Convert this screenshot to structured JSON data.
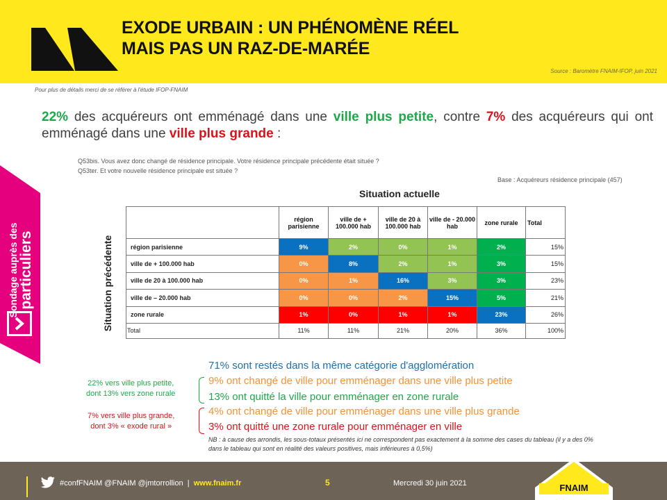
{
  "header": {
    "title_line1": "EXODE URBAIN : UN PHÉNOMÈNE RÉEL",
    "title_line2": "MAIS PAS UN RAZ-DE-MARÉE",
    "source": "Source : Baromètre FNAIM-IFOP, juin 2021"
  },
  "note_details": "Pour plus de détails merci de se référer à l'étude IFOP-FNAIM",
  "headline": {
    "p1": "22%",
    "p2": " des acquéreurs ont emménagé dans une ",
    "p3": "ville plus petite",
    "p4": ", contre ",
    "p5": "7%",
    "p6": " des acquéreurs qui ont emménagé dans une ",
    "p7": "ville plus grande",
    "p8": " :"
  },
  "side_tab": {
    "line1": "Sondage auprès des",
    "line2": "particuliers",
    "color": "#E5007E",
    "icon": "chevron-right-icon"
  },
  "questions": {
    "q1": "Q53bis. Vous avez donc changé de résidence principale. Votre résidence principale précédente était située ?",
    "q2": "Q53ter. Et votre nouvelle résidence principale est située ?"
  },
  "base": "Base : Acquéreurs résidence principale (457)",
  "table": {
    "col_title": "Situation actuelle",
    "row_title": "Situation précédente",
    "headers": [
      "région parisienne",
      "ville de + 100.000 hab",
      "ville de 20 à 100.000 hab",
      "ville de - 20.000 hab",
      "zone rurale",
      "Total"
    ],
    "rows": [
      {
        "label": "région parisienne",
        "cells": [
          "9%",
          "2%",
          "0%",
          "1%",
          "2%"
        ],
        "total": "15%"
      },
      {
        "label": "ville de + 100.000 hab",
        "cells": [
          "0%",
          "8%",
          "2%",
          "1%",
          "3%"
        ],
        "total": "15%"
      },
      {
        "label": "ville de 20 à 100.000 hab",
        "cells": [
          "0%",
          "1%",
          "16%",
          "3%",
          "3%"
        ],
        "total": "23%"
      },
      {
        "label": "ville de – 20.000 hab",
        "cells": [
          "0%",
          "0%",
          "2%",
          "15%",
          "5%"
        ],
        "total": "21%"
      },
      {
        "label": "zone rurale",
        "cells": [
          "1%",
          "0%",
          "1%",
          "1%",
          "23%"
        ],
        "total": "26%"
      }
    ],
    "total_row": {
      "label": "Total",
      "cells": [
        "11%",
        "11%",
        "21%",
        "20%",
        "36%"
      ],
      "total": "100%"
    },
    "colors": {
      "blue": "#0A70C0",
      "green": "#00B04F",
      "light_green": "#92C353",
      "orange": "#F79646",
      "red": "#FF0000"
    }
  },
  "summary": {
    "l1": "71% sont restés dans la même catégorie d'agglomération",
    "l2": "9% ont changé de ville pour emménager dans une ville plus petite",
    "l3": "13% ont quitté la ville pour emménager en zone rurale",
    "l4": "4% ont changé de ville pour emménager dans une ville plus grande",
    "l5": "3% ont quitté une zone rurale pour emménager en ville",
    "left_green_1": "22% vers ville plus petite,",
    "left_green_2": "dont 13% vers zone rurale",
    "left_red_1": "7% vers ville plus grande,",
    "left_red_2": "dont 3% « exode rural »",
    "nb": "NB : à cause des arrondis, les sous-totaux présentés ici ne correspondent pas exactement à la somme des cases du tableau (il y a des 0% dans le tableau qui sont en réalité des valeurs positives, mais inférieures à 0,5%)",
    "colors": {
      "blue": "#1F6FAE",
      "green": "#1FA84A",
      "orange": "#F39237",
      "red": "#D9131B"
    }
  },
  "footer": {
    "social": "#confFNAIM @FNAIM @jmtorrollion",
    "separator": "|",
    "site": "www.fnaim.fr",
    "page": "5",
    "date": "Mercredi 30 juin 2021",
    "brand": "FNAIM"
  }
}
